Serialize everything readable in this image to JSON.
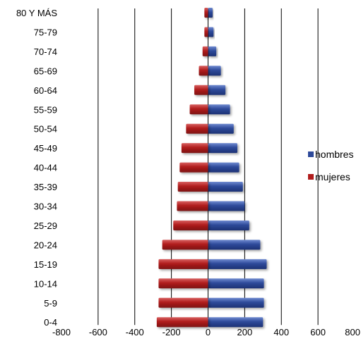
{
  "chart_data": {
    "type": "bar",
    "orientation": "horizontal",
    "layout": "population-pyramid",
    "categories": [
      "80 Y MÁS",
      "75-79",
      "70-74",
      "65-69",
      "60-64",
      "55-59",
      "50-54",
      "45-49",
      "40-44",
      "35-39",
      "30-34",
      "25-29",
      "20-24",
      "15-19",
      "10-14",
      "5-9",
      "0-4"
    ],
    "series": [
      {
        "name": "hombres",
        "color": "#2e4a9a",
        "values": [
          25,
          30,
          45,
          70,
          95,
          120,
          140,
          160,
          170,
          190,
          200,
          225,
          285,
          320,
          305,
          305,
          300
        ]
      },
      {
        "name": "mujeres",
        "color": "#b01c1c",
        "values": [
          -20,
          -20,
          -30,
          -50,
          -75,
          -100,
          -120,
          -145,
          -155,
          -165,
          -170,
          -190,
          -250,
          -270,
          -270,
          -270,
          -280
        ]
      }
    ],
    "xlim": [
      -800,
      800
    ],
    "xticks": [
      "-800",
      "-600",
      "-400",
      "-200",
      "0",
      "200",
      "400",
      "600",
      "800"
    ],
    "grid": "vertical",
    "legend": {
      "position": "right",
      "entries": [
        "hombres",
        "mujeres"
      ]
    }
  }
}
